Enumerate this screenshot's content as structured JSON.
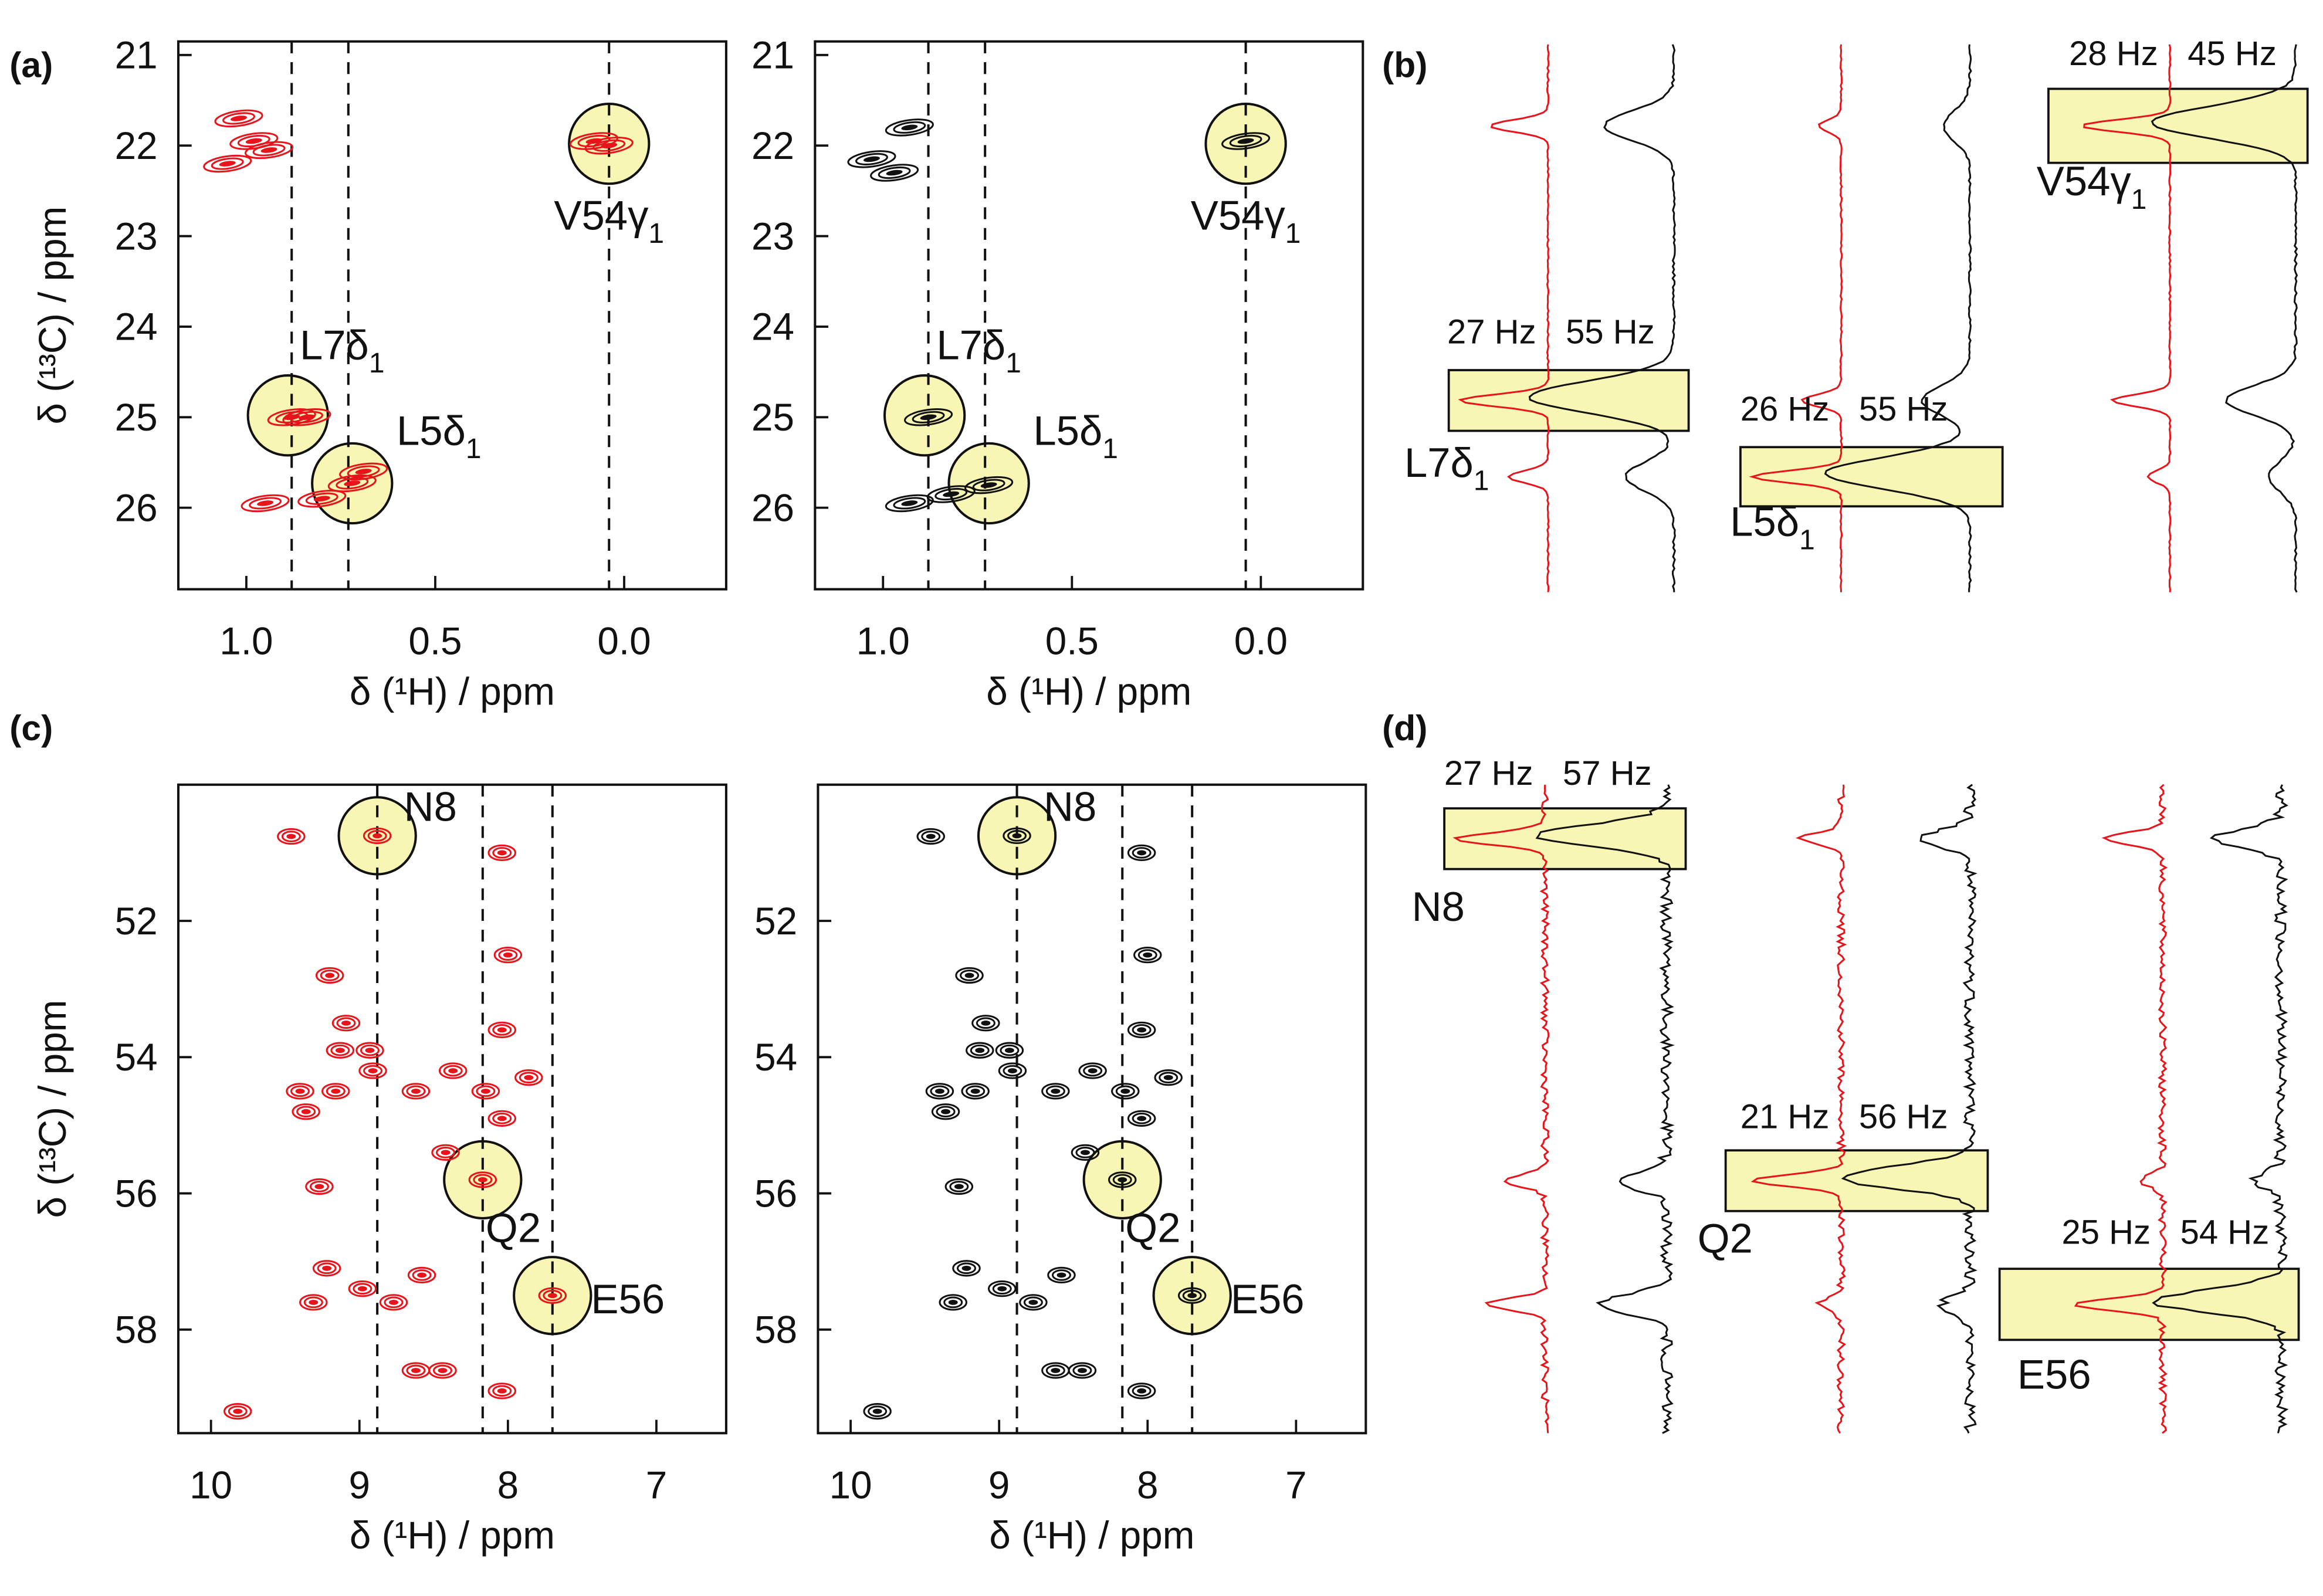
{
  "panel_labels": [
    "(a)",
    "(b)",
    "(c)",
    "(d)"
  ],
  "chart_data": [
    {
      "type": "scatter",
      "xlabel": "δ (¹H) / ppm",
      "ylabel": "δ (¹³C) / ppm",
      "xlim": [
        1.18,
        -0.27
      ],
      "ylim": [
        26.9,
        20.85
      ],
      "xticks": [
        {
          "value": 1,
          "label": "1.0"
        },
        0.5,
        {
          "value": 0,
          "label": "0.0"
        }
      ],
      "yticks": [
        21,
        22,
        23,
        24,
        25,
        26
      ],
      "vlines": [
        0.88,
        0.73,
        0.04
      ],
      "annotations": [
        {
          "x": 0.89,
          "y": 24.98,
          "label": {
            "text": "L7δ",
            "sub": "1"
          }
        },
        {
          "x": 0.72,
          "y": 25.73,
          "label": {
            "text": "L5δ",
            "sub": "1"
          }
        },
        {
          "x": 0.04,
          "y": 21.98,
          "label": {
            "text": "V54γ",
            "sub": "1"
          }
        }
      ],
      "series": [
        {
          "color": "#e8141b",
          "x": [
            1.02,
            0.98,
            1.05,
            0.94,
            0.88,
            0.84,
            0.72,
            0.69,
            0.95,
            0.8,
            0.04,
            0.08
          ],
          "y": [
            21.7,
            21.95,
            22.2,
            22.05,
            25.0,
            25.0,
            25.73,
            25.6,
            25.95,
            25.9,
            22.0,
            21.95
          ]
        }
      ]
    },
    {
      "type": "scatter",
      "xlabel": "δ (¹H) / ppm",
      "xlim": [
        1.18,
        -0.27
      ],
      "ylim": [
        26.9,
        20.85
      ],
      "xticks": [
        {
          "value": 1,
          "label": "1.0"
        },
        0.5,
        {
          "value": 0,
          "label": "0.0"
        }
      ],
      "yticks": [
        21,
        22,
        23,
        24,
        25,
        26
      ],
      "vlines": [
        0.88,
        0.73,
        0.04
      ],
      "annotations": [
        {
          "x": 0.89,
          "y": 24.98,
          "label": {
            "text": "L7δ",
            "sub": "1"
          }
        },
        {
          "x": 0.72,
          "y": 25.73,
          "label": {
            "text": "L5δ",
            "sub": "1"
          }
        },
        {
          "x": 0.04,
          "y": 21.98,
          "label": {
            "text": "V54γ",
            "sub": "1"
          }
        }
      ],
      "series": [
        {
          "color": "#111111",
          "x": [
            1.03,
            0.93,
            0.97,
            0.88,
            0.72,
            0.93,
            0.82,
            0.04
          ],
          "y": [
            22.15,
            21.8,
            22.3,
            25.0,
            25.75,
            25.95,
            25.85,
            21.95
          ]
        }
      ]
    },
    {
      "type": "scatter",
      "xlabel": "δ (¹H) / ppm",
      "ylabel": "δ (¹³C) / ppm",
      "xlim": [
        10.22,
        6.53
      ],
      "ylim": [
        59.52,
        50.0
      ],
      "xticks": [
        10,
        9,
        8,
        7
      ],
      "yticks": [
        52,
        54,
        56,
        58
      ],
      "vlines": [
        8.88,
        8.17,
        7.7
      ],
      "annotations": [
        {
          "x": 8.88,
          "y": 50.75,
          "label": {
            "text": "N8"
          }
        },
        {
          "x": 8.17,
          "y": 55.8,
          "label": {
            "text": "Q2"
          }
        },
        {
          "x": 7.7,
          "y": 57.5,
          "label": {
            "text": "E56"
          }
        }
      ],
      "series": [
        {
          "color": "#e8141b",
          "x": [
            9.46,
            8.04,
            8.0,
            9.2,
            9.09,
            8.04,
            9.13,
            8.93,
            9.4,
            9.16,
            8.91,
            8.62,
            8.37,
            8.15,
            7.86,
            9.36,
            8.04,
            8.42,
            9.27,
            9.22,
            9.31,
            8.98,
            8.77,
            8.58,
            8.62,
            8.44,
            9.82,
            8.04,
            8.88,
            8.17,
            7.7
          ],
          "y": [
            50.76,
            51.0,
            52.5,
            52.8,
            53.5,
            53.6,
            53.9,
            53.9,
            54.5,
            54.5,
            54.2,
            54.5,
            54.2,
            54.5,
            54.3,
            54.8,
            54.9,
            55.4,
            55.9,
            57.1,
            57.6,
            57.4,
            57.6,
            57.2,
            58.6,
            58.6,
            59.2,
            58.9,
            50.75,
            55.8,
            57.5
          ]
        }
      ]
    },
    {
      "type": "scatter",
      "xlabel": "δ (¹H) / ppm",
      "xlim": [
        10.22,
        6.53
      ],
      "ylim": [
        59.52,
        50.0
      ],
      "xticks": [
        10,
        9,
        8,
        7
      ],
      "yticks": [
        52,
        54,
        56,
        58
      ],
      "vlines": [
        8.88,
        8.17,
        7.7
      ],
      "annotations": [
        {
          "x": 8.88,
          "y": 50.75,
          "label": {
            "text": "N8"
          }
        },
        {
          "x": 8.17,
          "y": 55.8,
          "label": {
            "text": "Q2"
          }
        },
        {
          "x": 7.7,
          "y": 57.5,
          "label": {
            "text": "E56"
          }
        }
      ],
      "series": [
        {
          "color": "#111111",
          "x": [
            9.46,
            8.04,
            8.0,
            9.2,
            9.09,
            8.04,
            9.13,
            8.93,
            9.4,
            9.16,
            8.91,
            8.62,
            8.37,
            8.15,
            7.86,
            9.36,
            8.04,
            8.42,
            9.27,
            9.22,
            9.31,
            8.98,
            8.77,
            8.58,
            8.62,
            8.44,
            9.82,
            8.04,
            8.88,
            8.17,
            7.7
          ],
          "y": [
            50.76,
            51.0,
            52.5,
            52.8,
            53.5,
            53.6,
            53.9,
            53.9,
            54.5,
            54.5,
            54.2,
            54.5,
            54.2,
            54.5,
            54.3,
            54.8,
            54.9,
            55.4,
            55.9,
            57.1,
            57.6,
            57.4,
            57.6,
            57.2,
            58.6,
            58.6,
            59.2,
            58.9,
            50.75,
            55.8,
            57.5
          ]
        }
      ]
    }
  ],
  "panel_b": [
    {
      "label": {
        "text": "L7δ",
        "sub": "1"
      },
      "red": "27 Hz",
      "black": "55 Hz"
    },
    {
      "label": {
        "text": "L5δ",
        "sub": "1"
      },
      "red": "26 Hz",
      "black": "55 Hz"
    },
    {
      "label": {
        "text": "V54γ",
        "sub": "1"
      },
      "red": "28 Hz",
      "black": "45 Hz"
    }
  ],
  "panel_d": [
    {
      "label": {
        "text": "N8"
      },
      "red": "27 Hz",
      "black": "57 Hz"
    },
    {
      "label": {
        "text": "Q2"
      },
      "red": "21 Hz",
      "black": "56 Hz"
    },
    {
      "label": {
        "text": "E56"
      },
      "red": "25 Hz",
      "black": "54 Hz"
    }
  ]
}
